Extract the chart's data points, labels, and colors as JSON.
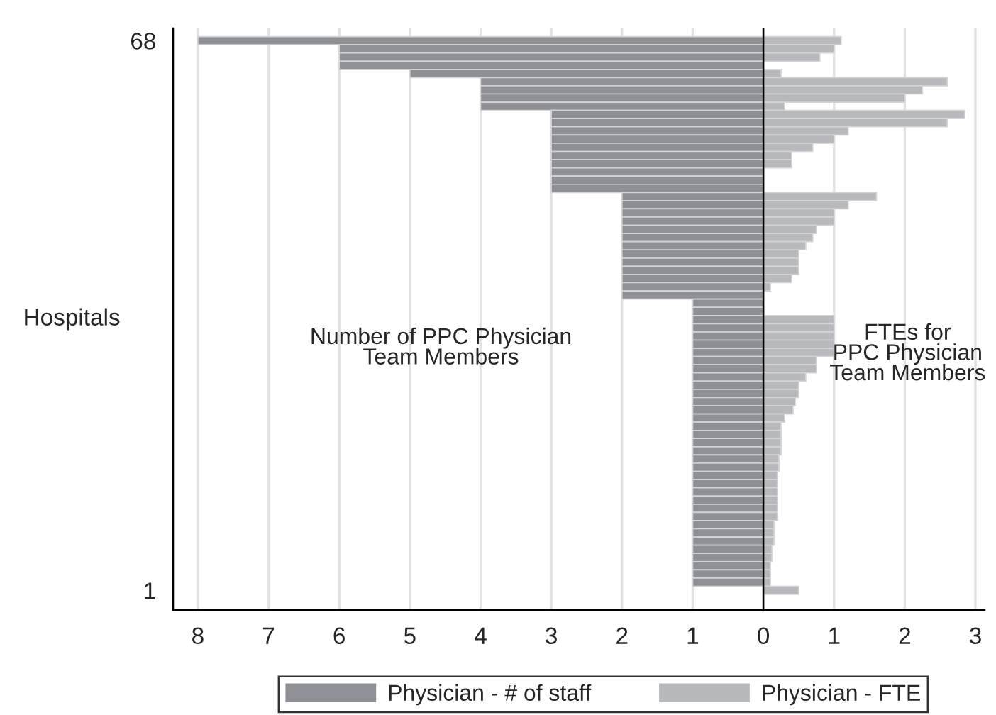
{
  "chart_data": {
    "type": "bar",
    "orientation": "horizontal",
    "stacked": true,
    "ylabel": "Hospitals",
    "categories": [
      "68",
      null,
      null,
      null,
      null,
      null,
      null,
      null,
      null,
      null,
      null,
      null,
      null,
      null,
      null,
      null,
      null,
      null,
      null,
      null,
      null,
      null,
      null,
      null,
      null,
      null,
      null,
      null,
      null,
      null,
      null,
      null,
      null,
      null,
      null,
      null,
      null,
      null,
      null,
      null,
      null,
      null,
      null,
      null,
      null,
      null,
      null,
      null,
      null,
      null,
      null,
      null,
      null,
      null,
      null,
      null,
      null,
      null,
      null,
      null,
      null,
      null,
      null,
      null,
      null,
      null,
      null,
      "1"
    ],
    "series": [
      {
        "name": "Physician - # of staff",
        "color": "#8f9095",
        "values": [
          -8,
          -6,
          -6,
          -6,
          -5,
          -4,
          -4,
          -4,
          -4,
          -3,
          -3,
          -3,
          -3,
          -3,
          -3,
          -3,
          -3,
          -3,
          -3,
          -2,
          -2,
          -2,
          -2,
          -2,
          -2,
          -2,
          -2,
          -2,
          -2,
          -2,
          -2,
          -2,
          -1,
          -1,
          -1,
          -1,
          -1,
          -1,
          -1,
          -1,
          -1,
          -1,
          -1,
          -1,
          -1,
          -1,
          -1,
          -1,
          -1,
          -1,
          -1,
          -1,
          -1,
          -1,
          -1,
          -1,
          -1,
          -1,
          -1,
          -1,
          -1,
          -1,
          -1,
          -1,
          -1,
          -1,
          -1,
          0
        ]
      },
      {
        "name": "Physician - FTE",
        "color": "#b8b9bd",
        "values": [
          1.1,
          1.0,
          0.8,
          0,
          0.25,
          2.6,
          2.25,
          2.0,
          0.3,
          2.85,
          2.6,
          1.2,
          1.0,
          0.7,
          0.4,
          0.4,
          0,
          0,
          0,
          1.6,
          1.2,
          1.0,
          1.0,
          0.75,
          0.7,
          0.6,
          0.5,
          0.5,
          0.5,
          0.4,
          0.1,
          0,
          0,
          0,
          1.0,
          1.0,
          1.0,
          1.0,
          1.0,
          0.75,
          0.75,
          0.6,
          0.5,
          0.5,
          0.45,
          0.42,
          0.3,
          0.25,
          0.25,
          0.25,
          0.25,
          0.22,
          0.22,
          0.2,
          0.2,
          0.2,
          0.2,
          0.2,
          0.2,
          0.15,
          0.15,
          0.15,
          0.12,
          0.12,
          0.1,
          0.1,
          0.1,
          0.5
        ]
      }
    ],
    "xlim": [
      -8.35,
      3.13
    ],
    "xticks": [
      {
        "value": -8,
        "label": "8"
      },
      {
        "value": -7,
        "label": "7"
      },
      {
        "value": -6,
        "label": "6"
      },
      {
        "value": -5,
        "label": "5"
      },
      {
        "value": -4,
        "label": "4"
      },
      {
        "value": -3,
        "label": "3"
      },
      {
        "value": -2,
        "label": "2"
      },
      {
        "value": -1,
        "label": "1"
      },
      0,
      1,
      2,
      3
    ],
    "ref_lines": [
      {
        "axis": "x",
        "value": 0,
        "color": "#000000"
      }
    ],
    "annotations": [
      "Number of PPC Physician\nTeam Members",
      "FTEs for\nPPC Physician\nTeam Members"
    ],
    "grid": "x",
    "legend": "bottom"
  }
}
